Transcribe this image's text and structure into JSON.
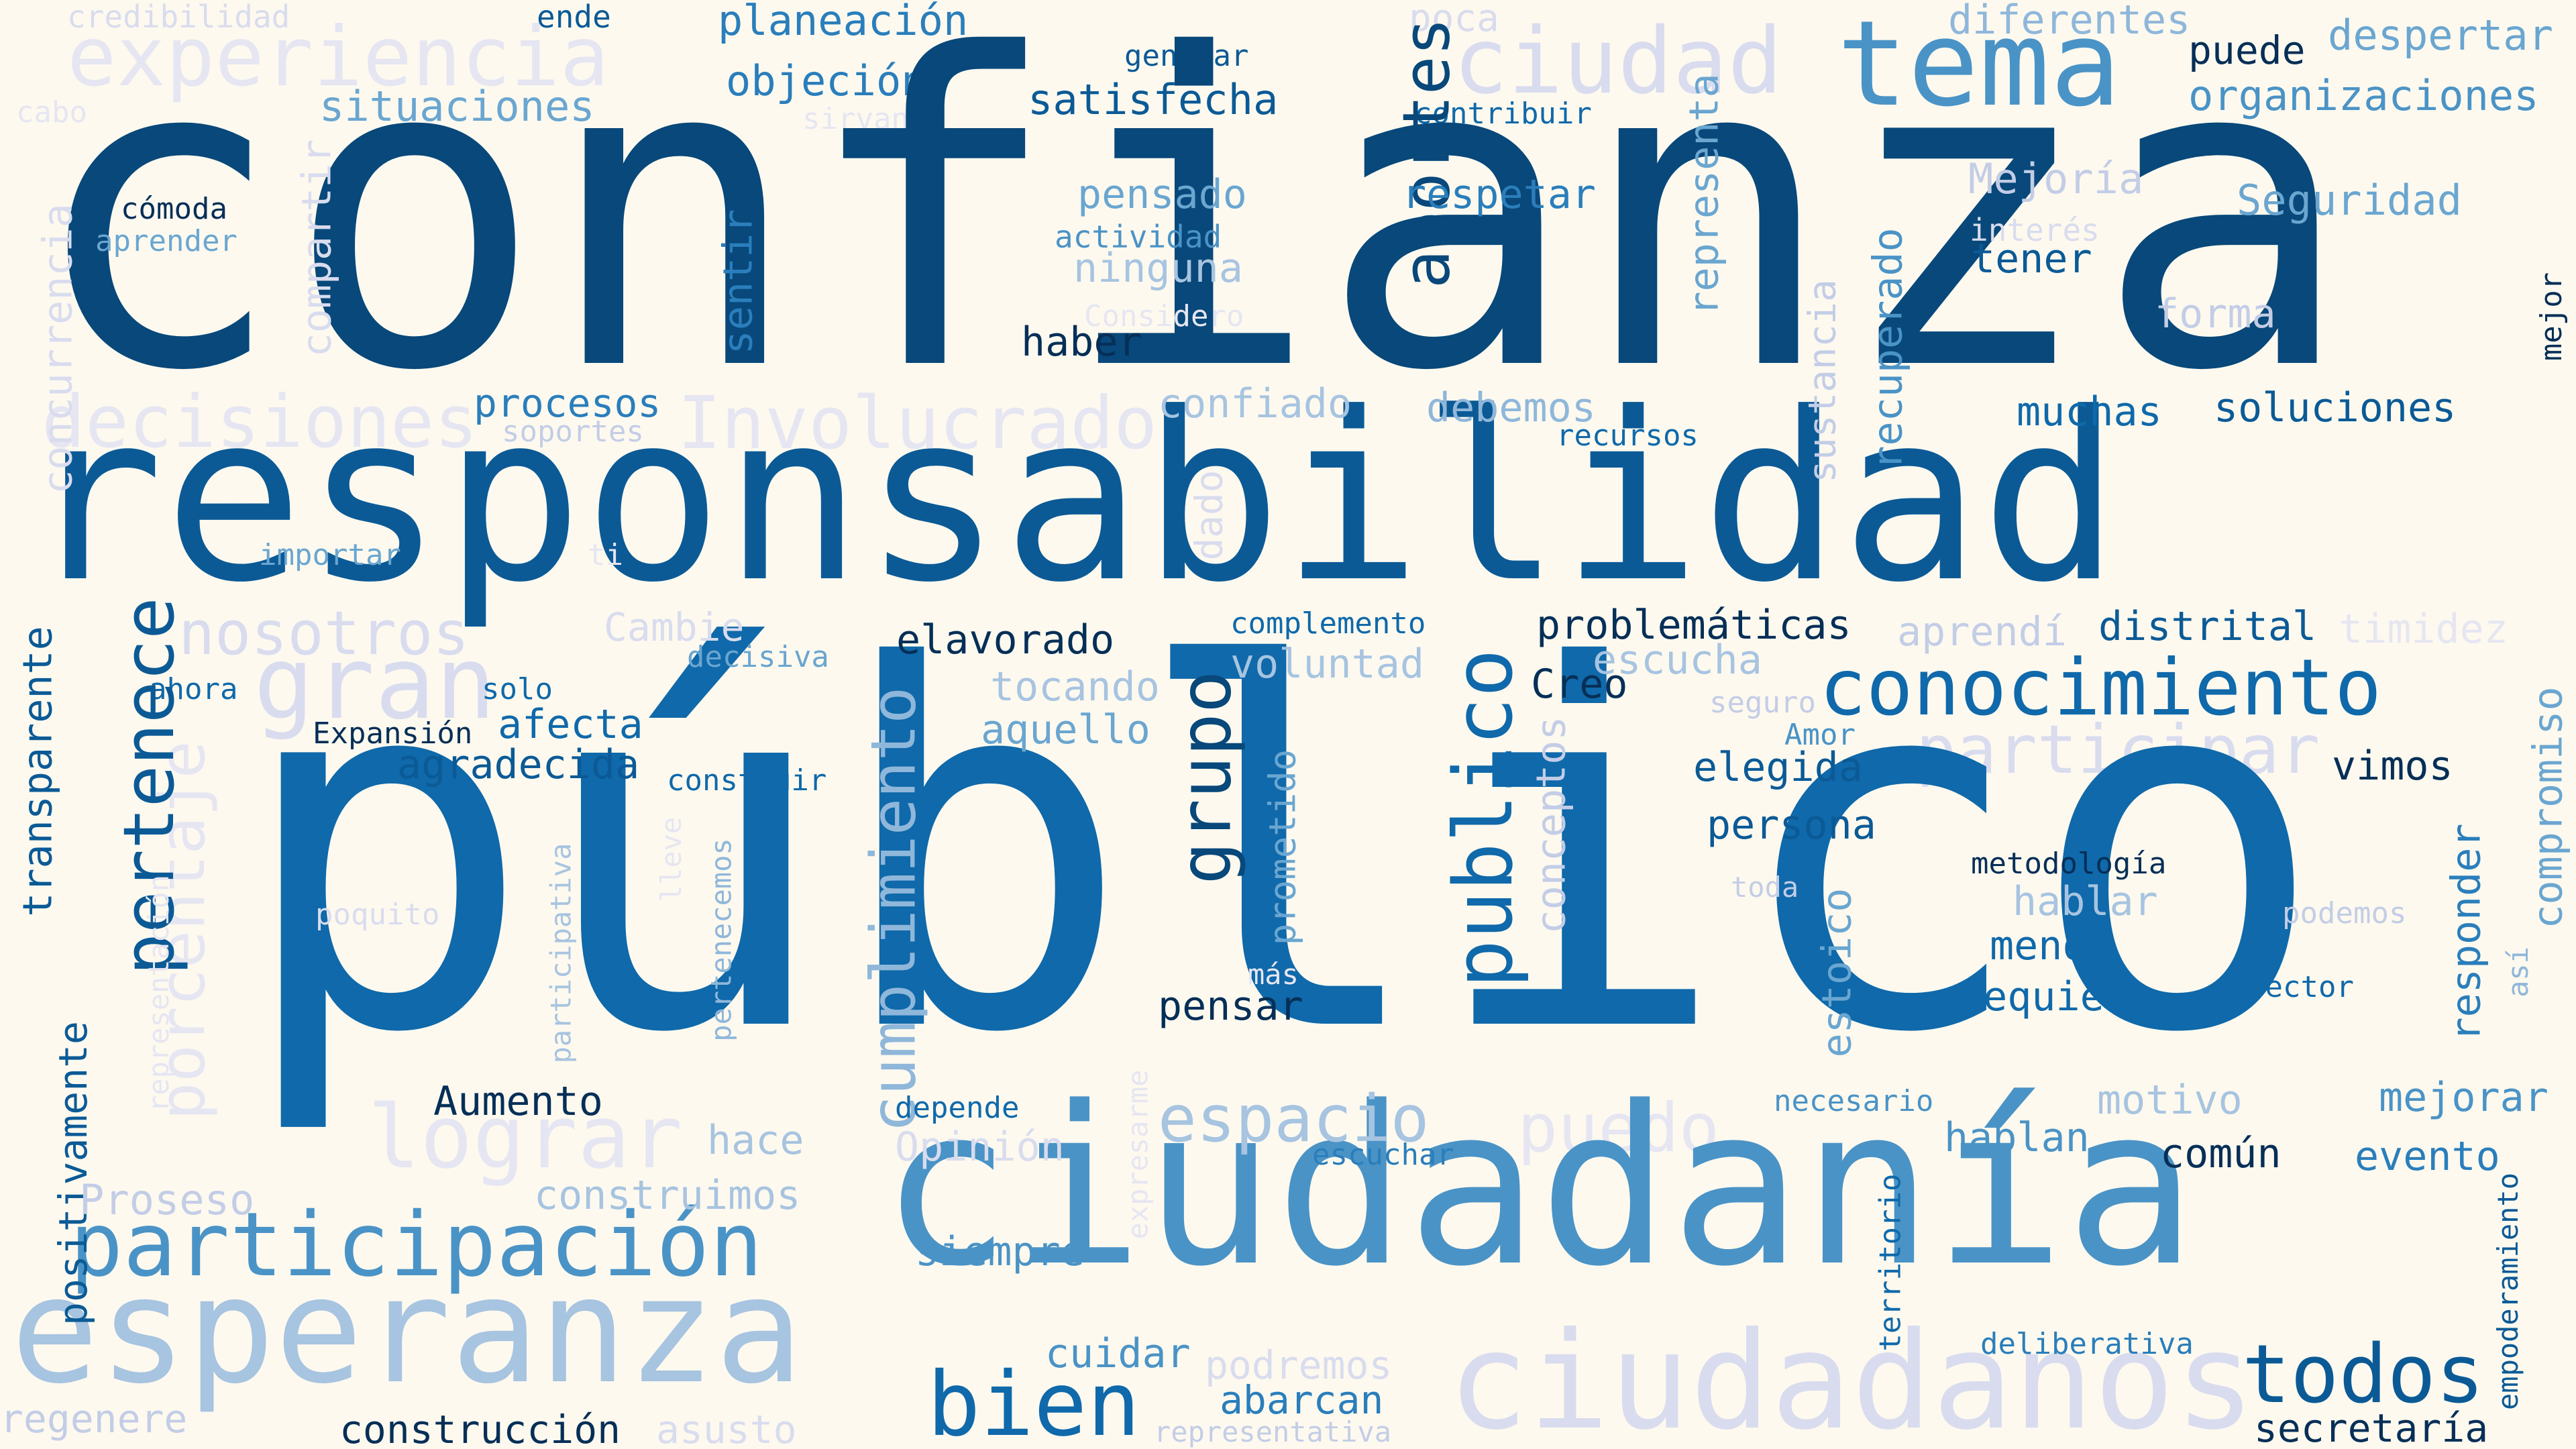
{
  "words": [
    {
      "id": "confianza",
      "text": "confianza"
    },
    {
      "id": "responsabilidad",
      "text": "responsabilidad"
    },
    {
      "id": "publico_acc",
      "text": "público"
    },
    {
      "id": "ciudadania",
      "text": "ciudadanía"
    },
    {
      "id": "esperanza",
      "text": "esperanza"
    },
    {
      "id": "participacion",
      "text": "participación"
    },
    {
      "id": "ciudadanos",
      "text": "ciudadanos"
    },
    {
      "id": "tema",
      "text": "tema"
    },
    {
      "id": "ciudad",
      "text": "ciudad"
    },
    {
      "id": "conocimiento",
      "text": "conocimiento"
    },
    {
      "id": "pertenece",
      "text": "pertenece"
    },
    {
      "id": "publico",
      "text": "publico"
    },
    {
      "id": "grupo",
      "text": "grupo"
    },
    {
      "id": "cumplimiento",
      "text": "cumplimiento"
    },
    {
      "id": "bien",
      "text": "bien"
    },
    {
      "id": "todos",
      "text": "todos"
    },
    {
      "id": "espacio",
      "text": "espacio"
    },
    {
      "id": "aportes",
      "text": "aportes"
    },
    {
      "id": "decisiones",
      "text": "decisiones"
    },
    {
      "id": "involucrado",
      "text": "Involucrado"
    },
    {
      "id": "experiencia",
      "text": "experiencia"
    },
    {
      "id": "lograr",
      "text": "lograr"
    },
    {
      "id": "gran",
      "text": "gran"
    },
    {
      "id": "nosotros",
      "text": "nosotros"
    },
    {
      "id": "porcentaje",
      "text": "porcentaje"
    },
    {
      "id": "participar",
      "text": "participar"
    },
    {
      "id": "puedo",
      "text": "puedo"
    },
    {
      "id": "credibilidad",
      "text": "credibilidad"
    },
    {
      "id": "ende",
      "text": "ende"
    },
    {
      "id": "planeacion",
      "text": "planeación"
    },
    {
      "id": "objecion",
      "text": "objeción"
    },
    {
      "id": "generar",
      "text": "generar"
    },
    {
      "id": "satisfecha",
      "text": "satisfecha"
    },
    {
      "id": "poca",
      "text": "poca"
    },
    {
      "id": "contribuir",
      "text": "contribuir"
    },
    {
      "id": "diferentes",
      "text": "diferentes"
    },
    {
      "id": "puede",
      "text": "puede"
    },
    {
      "id": "despertar",
      "text": "despertar"
    },
    {
      "id": "organizaciones",
      "text": "organizaciones"
    },
    {
      "id": "situaciones",
      "text": "situaciones"
    },
    {
      "id": "sirvan",
      "text": "sirvan"
    },
    {
      "id": "cabo",
      "text": "cabo"
    },
    {
      "id": "comoda",
      "text": "cómoda"
    },
    {
      "id": "aprender",
      "text": "aprender"
    },
    {
      "id": "compartir",
      "text": "compartir"
    },
    {
      "id": "concurrencia",
      "text": "concurrencia"
    },
    {
      "id": "pensado",
      "text": "pensado"
    },
    {
      "id": "actividad",
      "text": "actividad"
    },
    {
      "id": "ninguna",
      "text": "ninguna"
    },
    {
      "id": "respetar",
      "text": "respetar"
    },
    {
      "id": "representa",
      "text": "representa"
    },
    {
      "id": "mejoria",
      "text": "Mejoría"
    },
    {
      "id": "interes",
      "text": "interés"
    },
    {
      "id": "seguridad",
      "text": "Seguridad"
    },
    {
      "id": "tener",
      "text": "tener"
    },
    {
      "id": "forma",
      "text": "forma"
    },
    {
      "id": "mejor",
      "text": "mejor"
    },
    {
      "id": "considero",
      "text": "Considero"
    },
    {
      "id": "haber",
      "text": "haber"
    },
    {
      "id": "sentir",
      "text": "sentir"
    },
    {
      "id": "sustancia",
      "text": "sustancia"
    },
    {
      "id": "recuperado",
      "text": "recuperado"
    },
    {
      "id": "procesos",
      "text": "procesos"
    },
    {
      "id": "soportes",
      "text": "soportes"
    },
    {
      "id": "confiado",
      "text": "confiado"
    },
    {
      "id": "debemos",
      "text": "debemos"
    },
    {
      "id": "recursos",
      "text": "recursos"
    },
    {
      "id": "muchas",
      "text": "muchas"
    },
    {
      "id": "soluciones",
      "text": "soluciones"
    },
    {
      "id": "importar",
      "text": "importar"
    },
    {
      "id": "dado",
      "text": "dado"
    },
    {
      "id": "transparente",
      "text": "transparente"
    },
    {
      "id": "cambie",
      "text": "Cambie"
    },
    {
      "id": "complemento",
      "text": "complemento"
    },
    {
      "id": "problematicas",
      "text": "problemáticas"
    },
    {
      "id": "aprendi",
      "text": "aprendí"
    },
    {
      "id": "distrital",
      "text": "distrital"
    },
    {
      "id": "timidez",
      "text": "timidez"
    },
    {
      "id": "ahora",
      "text": "ahora"
    },
    {
      "id": "solo",
      "text": "solo"
    },
    {
      "id": "decisiva",
      "text": "decisiva"
    },
    {
      "id": "elavorado",
      "text": "elavorado"
    },
    {
      "id": "voluntad",
      "text": "voluntad"
    },
    {
      "id": "creo",
      "text": "Creo"
    },
    {
      "id": "escucha",
      "text": "escucha"
    },
    {
      "id": "tocando",
      "text": "tocando"
    },
    {
      "id": "seguro",
      "text": "seguro"
    },
    {
      "id": "expansion",
      "text": "Expansión"
    },
    {
      "id": "afecta",
      "text": "afecta"
    },
    {
      "id": "aquello",
      "text": "aquello"
    },
    {
      "id": "amor",
      "text": "Amor"
    },
    {
      "id": "compromiso",
      "text": "compromiso"
    },
    {
      "id": "agradecida",
      "text": "agradecida"
    },
    {
      "id": "construir",
      "text": "construir"
    },
    {
      "id": "conceptos",
      "text": "conceptos"
    },
    {
      "id": "elegida",
      "text": "elegida"
    },
    {
      "id": "vimos",
      "text": "vimos"
    },
    {
      "id": "persona",
      "text": "persona"
    },
    {
      "id": "participativa",
      "text": "participativa"
    },
    {
      "id": "lleve",
      "text": "lleve"
    },
    {
      "id": "pertenecemos",
      "text": "pertenecemos"
    },
    {
      "id": "prometido",
      "text": "prometido"
    },
    {
      "id": "toda",
      "text": "toda"
    },
    {
      "id": "metodologia",
      "text": "metodología"
    },
    {
      "id": "responder",
      "text": "responder"
    },
    {
      "id": "representacion",
      "text": "representación"
    },
    {
      "id": "poquito",
      "text": "poquito"
    },
    {
      "id": "hablar",
      "text": "hablar"
    },
    {
      "id": "podemos",
      "text": "podemos"
    },
    {
      "id": "estoico",
      "text": "estoico"
    },
    {
      "id": "menos",
      "text": "menos"
    },
    {
      "id": "mas",
      "text": "más"
    },
    {
      "id": "asi",
      "text": "así"
    },
    {
      "id": "sector",
      "text": "sector"
    },
    {
      "id": "requiere",
      "text": "requiere"
    },
    {
      "id": "pensar",
      "text": "pensar"
    },
    {
      "id": "positivamente",
      "text": "positivamente"
    },
    {
      "id": "aumento",
      "text": "Aumento"
    },
    {
      "id": "depende",
      "text": "depende"
    },
    {
      "id": "expresarme",
      "text": "expresarme"
    },
    {
      "id": "necesario",
      "text": "necesario"
    },
    {
      "id": "motivo",
      "text": "motivo"
    },
    {
      "id": "mejorar",
      "text": "mejorar"
    },
    {
      "id": "hace",
      "text": "hace"
    },
    {
      "id": "opinion",
      "text": "Opinión"
    },
    {
      "id": "hablan",
      "text": "hablan"
    },
    {
      "id": "proseso",
      "text": "Proseso"
    },
    {
      "id": "construimos",
      "text": "construimos"
    },
    {
      "id": "escuchar",
      "text": "escuchar"
    },
    {
      "id": "comun",
      "text": "común"
    },
    {
      "id": "evento",
      "text": "evento"
    },
    {
      "id": "empoderamiento",
      "text": "empoderamiento"
    },
    {
      "id": "siempre",
      "text": "siempre"
    },
    {
      "id": "territorio",
      "text": "territorio"
    },
    {
      "id": "cuidar",
      "text": "cuidar"
    },
    {
      "id": "podremos",
      "text": "podremos"
    },
    {
      "id": "deliberativa",
      "text": "deliberativa"
    },
    {
      "id": "abarcan",
      "text": "abarcan"
    },
    {
      "id": "regenere",
      "text": "regenere"
    },
    {
      "id": "construccion",
      "text": "construcción"
    },
    {
      "id": "asusto",
      "text": "asusto"
    },
    {
      "id": "representativa",
      "text": "representativa"
    },
    {
      "id": "secretaria",
      "text": "secretaría"
    },
    {
      "id": "ti",
      "text": "ti"
    }
  ]
}
